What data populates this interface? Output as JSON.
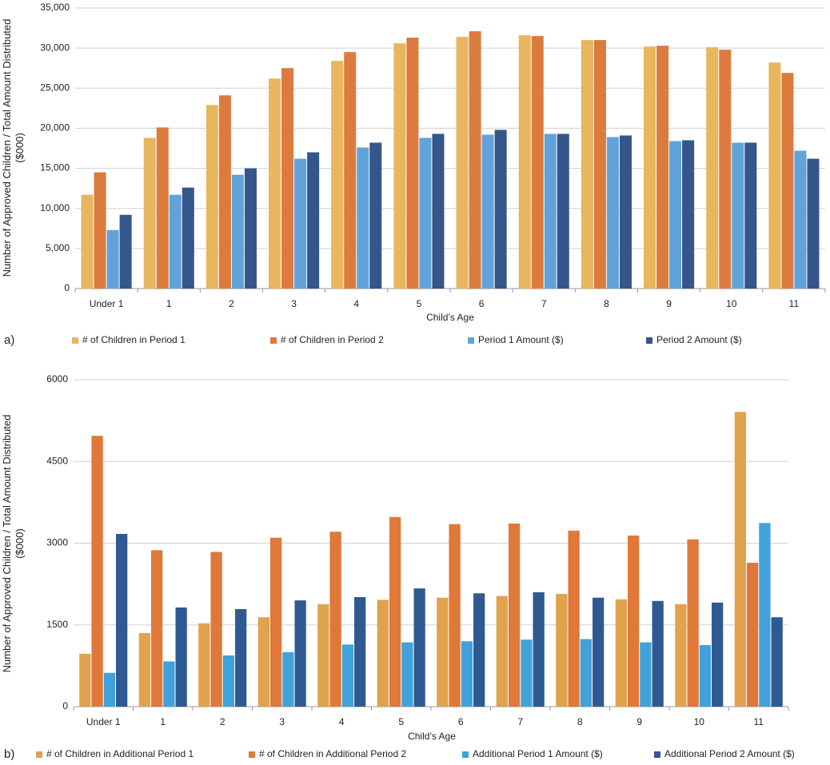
{
  "chart_data": [
    {
      "type": "bar",
      "panel_label": "a)",
      "x_label": "Child’s Age",
      "y_label": "Number of Approved Children / Total Amount Distributed ($000)",
      "categories": [
        "Under 1",
        "1",
        "2",
        "3",
        "4",
        "5",
        "6",
        "7",
        "8",
        "9",
        "10",
        "11"
      ],
      "series": [
        {
          "name": "# of Children in Period 1",
          "color": "#E8B65F",
          "values": [
            11700,
            18800,
            22900,
            26200,
            28400,
            30600,
            31400,
            31600,
            31000,
            30200,
            30100,
            28200
          ]
        },
        {
          "name": "# of Children in Period 2",
          "color": "#DC7B3E",
          "values": [
            14500,
            20100,
            24100,
            27500,
            29500,
            31300,
            32100,
            31500,
            31000,
            30300,
            29800,
            26900
          ]
        },
        {
          "name": "Period 1 Amount ($)",
          "color": "#61A3D9",
          "values": [
            7300,
            11700,
            14200,
            16200,
            17600,
            18800,
            19200,
            19300,
            18900,
            18400,
            18200,
            17200
          ]
        },
        {
          "name": "Period 2 Amount ($)",
          "color": "#34568A",
          "values": [
            9200,
            12600,
            15000,
            17000,
            18200,
            19300,
            19800,
            19300,
            19100,
            18500,
            18200,
            16200
          ]
        }
      ],
      "ylim": [
        0,
        35000
      ],
      "yticks": [
        0,
        {
          "value": 5000,
          "label": "5,000"
        },
        {
          "value": 10000,
          "label": "10,000"
        },
        {
          "value": 15000,
          "label": "15,000"
        },
        {
          "value": 20000,
          "label": "20,000"
        },
        {
          "value": 25000,
          "label": "25,000"
        },
        {
          "value": 30000,
          "label": "30,000"
        },
        {
          "value": 35000,
          "label": "35,000"
        }
      ],
      "grid": true,
      "legend": "bottom"
    },
    {
      "type": "bar",
      "panel_label": "b)",
      "x_label": "Child’s Age",
      "y_label": "Number of Approved Children / Total Amount Distributed ($000)",
      "categories": [
        "Under 1",
        "1",
        "2",
        "3",
        "4",
        "5",
        "6",
        "7",
        "8",
        "9",
        "10",
        "11"
      ],
      "series": [
        {
          "name": "# of Children in Additional Period 1",
          "color": "#E0A24C",
          "values": [
            970,
            1350,
            1530,
            1640,
            1880,
            1960,
            2000,
            2030,
            2070,
            1970,
            1880,
            5410
          ]
        },
        {
          "name": "# of Children in Additional Period 2",
          "color": "#DF7838",
          "values": [
            4970,
            2870,
            2840,
            3100,
            3210,
            3480,
            3350,
            3360,
            3230,
            3140,
            3070,
            2640
          ]
        },
        {
          "name": "Additional Period 1 Amount ($)",
          "color": "#41A2DB",
          "values": [
            620,
            830,
            940,
            1000,
            1140,
            1180,
            1200,
            1230,
            1240,
            1180,
            1130,
            3370
          ]
        },
        {
          "name": "Additional Period 2 Amount ($)",
          "color": "#2F5A91",
          "values": [
            3170,
            1820,
            1790,
            1950,
            2010,
            2170,
            2080,
            2100,
            2000,
            1940,
            1910,
            1640
          ]
        }
      ],
      "ylim": [
        0,
        6000
      ],
      "yticks": [
        0,
        1500,
        3000,
        4500,
        6000
      ],
      "grid": true,
      "legend": "bottom"
    }
  ]
}
